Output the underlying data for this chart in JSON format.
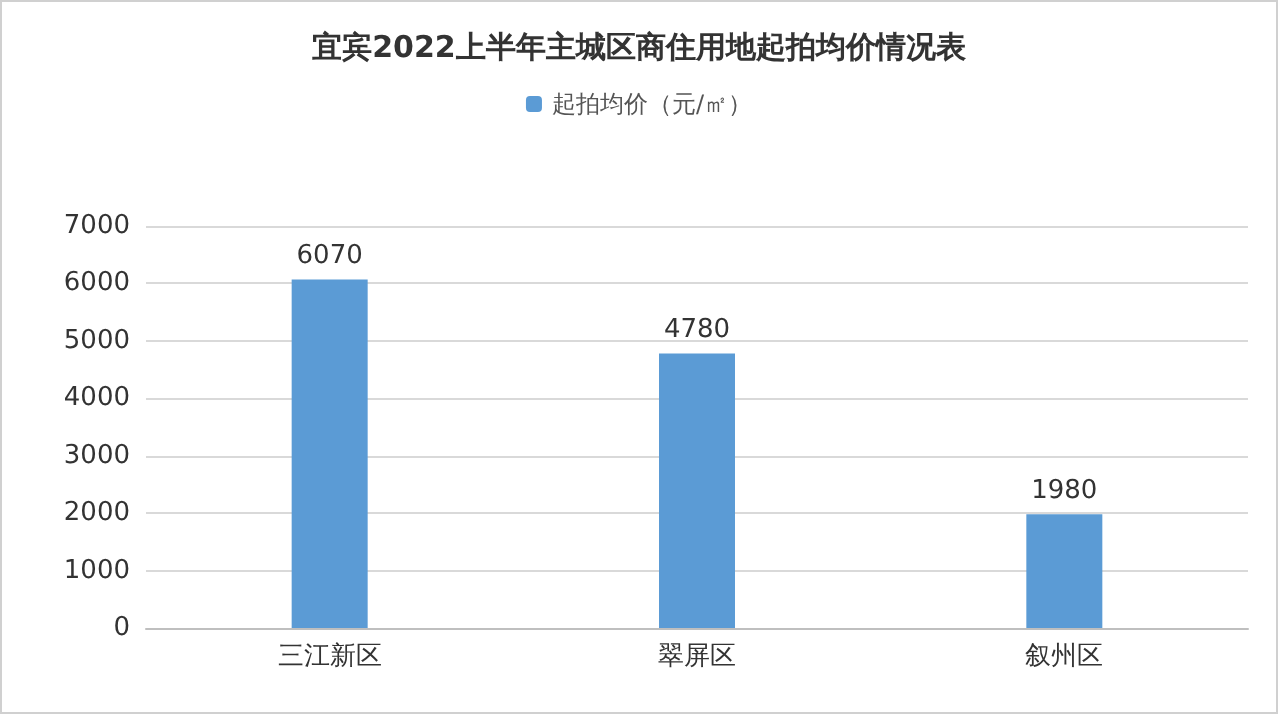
{
  "chart_data": {
    "type": "bar",
    "title": "宜宾2022上半年主城区商住用地起拍均价情况表",
    "categories": [
      "三江新区",
      "翠屏区",
      "叙州区"
    ],
    "series": [
      {
        "name": "起拍均价（元/㎡）",
        "color": "#5b9bd5",
        "values": [
          6070,
          4780,
          1980
        ]
      }
    ],
    "ylim": [
      0,
      7000
    ],
    "yticks": [
      0,
      1000,
      2000,
      3000,
      4000,
      5000,
      6000,
      7000
    ],
    "grid": "y",
    "legend": "top",
    "data_labels": true
  }
}
